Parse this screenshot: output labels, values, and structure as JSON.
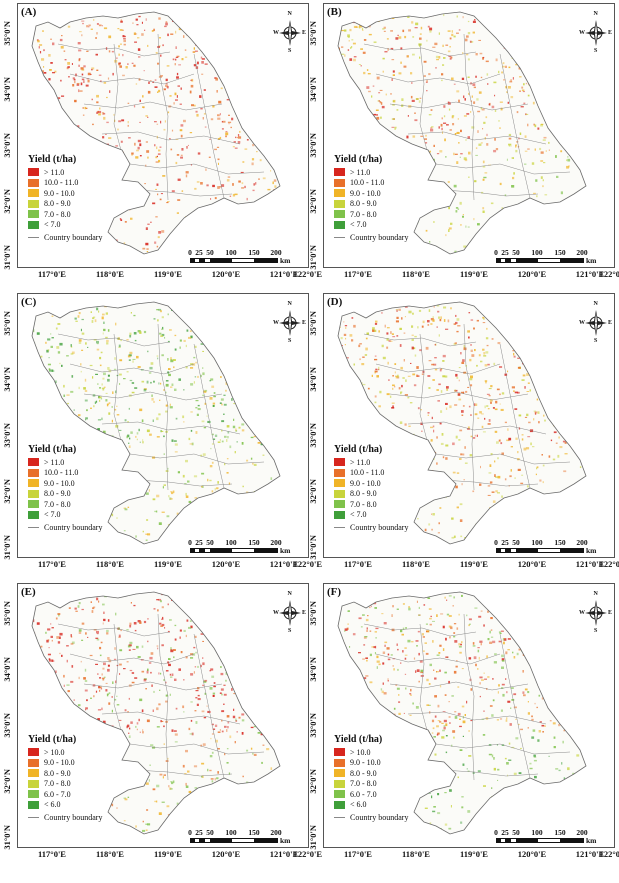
{
  "figure": {
    "x_ticks": [
      "117°0'E",
      "118°0'E",
      "119°0'E",
      "120°0'E",
      "121°0'E",
      "122°0'E"
    ],
    "y_ticks": [
      "35°0'N",
      "34°0'N",
      "33°0'N",
      "32°0'N",
      "31°0'N"
    ],
    "compass": {
      "n": "N",
      "s": "S",
      "w": "W",
      "e": "E"
    },
    "scale": {
      "ticks": [
        "0",
        "25",
        "50",
        "100",
        "150",
        "200"
      ],
      "unit": "km"
    },
    "legend_title": "Yield (t/ha)",
    "boundary_label": "Country boundary",
    "colors": [
      "#d7261e",
      "#e8702a",
      "#f0b428",
      "#c8d43c",
      "#7fc24a",
      "#3f9f3a"
    ],
    "legend_set_1": [
      "> 11.0",
      "10.0 - 11.0",
      "9.0 - 10.0",
      "8.0 - 9.0",
      "7.0 - 8.0",
      "< 7.0"
    ],
    "legend_set_2": [
      "> 10.0",
      "9.0 - 10.0",
      "8.0 - 9.0",
      "7.0 - 8.0",
      "6.0 - 7.0",
      "< 6.0"
    ]
  },
  "panels": [
    {
      "label": "(A)",
      "legend": [
        "> 11.0",
        "10.0 - 11.0",
        "9.0 - 10.0",
        "8.0 - 9.0",
        "7.0 - 8.0",
        "< 7.0"
      ],
      "mix": {
        "north": [
          "#d7261e",
          "#e8702a",
          "#d7261e",
          "#f0b428"
        ],
        "south": [
          "#e8702a",
          "#d7261e",
          "#f0b428"
        ]
      }
    },
    {
      "label": "(B)",
      "legend": [
        "> 11.0",
        "10.0 - 11.0",
        "9.0 - 10.0",
        "8.0 - 9.0",
        "7.0 - 8.0",
        "< 7.0"
      ],
      "mix": {
        "north": [
          "#e8702a",
          "#f0b428",
          "#c8d43c",
          "#d7261e"
        ],
        "south": [
          "#c8d43c",
          "#f0b428",
          "#7fc24a"
        ]
      }
    },
    {
      "label": "(C)",
      "legend": [
        "> 11.0",
        "10.0 - 11.0",
        "9.0 - 10.0",
        "8.0 - 9.0",
        "7.0 - 8.0",
        "< 7.0"
      ],
      "mix": {
        "north": [
          "#7fc24a",
          "#c8d43c",
          "#3f9f3a",
          "#f0b428"
        ],
        "south": [
          "#c8d43c",
          "#7fc24a",
          "#f0b428"
        ]
      }
    },
    {
      "label": "(D)",
      "legend": [
        "> 11.0",
        "10.0 - 11.0",
        "9.0 - 10.0",
        "8.0 - 9.0",
        "7.0 - 8.0",
        "< 7.0"
      ],
      "mix": {
        "north": [
          "#e8702a",
          "#f0b428",
          "#d7261e",
          "#c8d43c"
        ],
        "south": [
          "#f0b428",
          "#c8d43c",
          "#e8702a"
        ]
      }
    },
    {
      "label": "(E)",
      "legend": [
        "> 10.0",
        "9.0 - 10.0",
        "8.0 - 9.0",
        "7.0 - 8.0",
        "6.0 - 7.0",
        "< 6.0"
      ],
      "mix": {
        "north": [
          "#d7261e",
          "#e8702a",
          "#d7261e",
          "#7fc24a"
        ],
        "south": [
          "#e8702a",
          "#f0b428",
          "#7fc24a"
        ]
      }
    },
    {
      "label": "(F)",
      "legend": [
        "> 10.0",
        "9.0 - 10.0",
        "8.0 - 9.0",
        "7.0 - 8.0",
        "6.0 - 7.0",
        "< 6.0"
      ],
      "mix": {
        "north": [
          "#d7261e",
          "#e8702a",
          "#f0b428",
          "#7fc24a"
        ],
        "south": [
          "#7fc24a",
          "#3f9f3a",
          "#c8d43c"
        ]
      }
    }
  ]
}
